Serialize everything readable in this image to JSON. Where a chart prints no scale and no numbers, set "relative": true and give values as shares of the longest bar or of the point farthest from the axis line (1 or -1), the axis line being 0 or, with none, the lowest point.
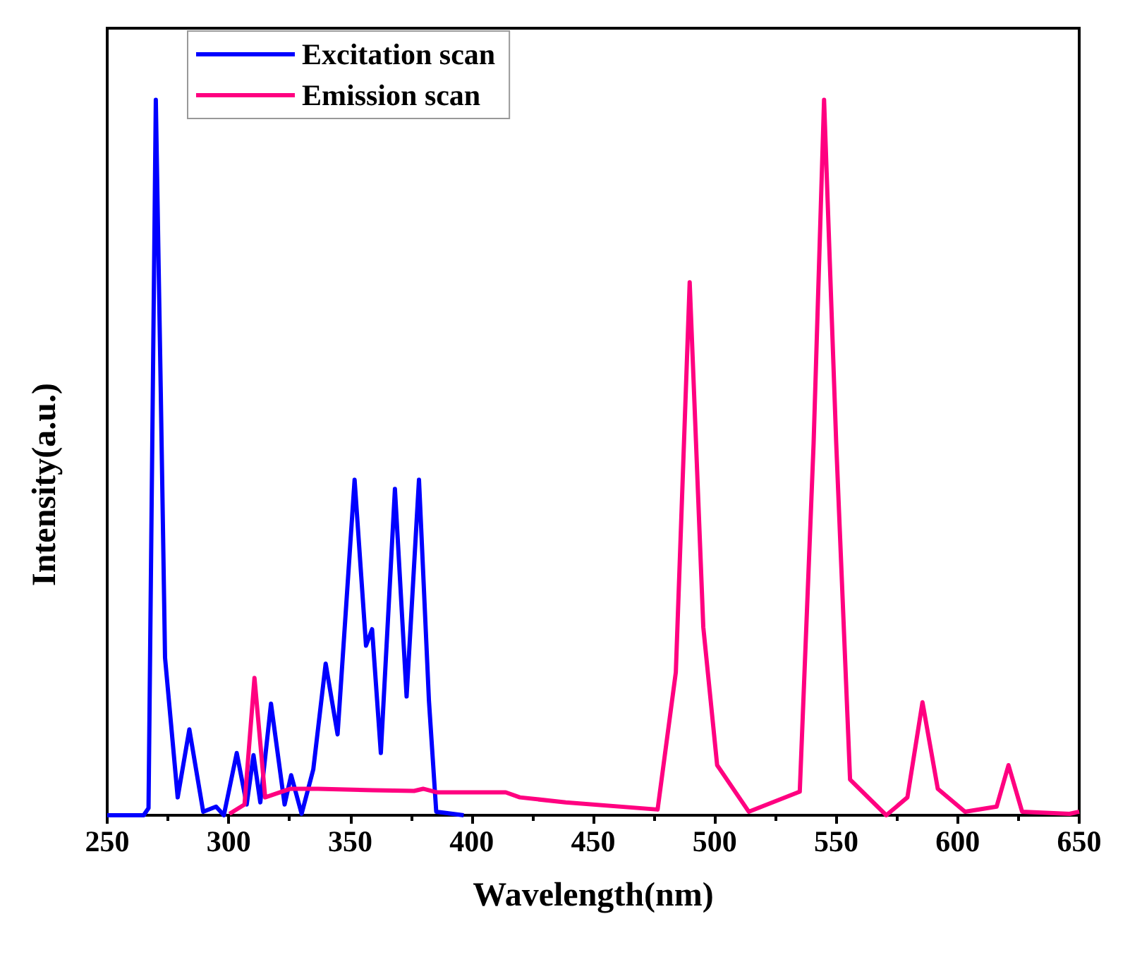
{
  "chart_data": {
    "type": "line",
    "xlabel": "Wavelength(nm)",
    "ylabel": "Intensity(a.u.)",
    "relative": true,
    "xlim": [
      250,
      650
    ],
    "xticks": [
      250,
      300,
      350,
      400,
      450,
      500,
      550,
      600,
      650
    ],
    "tick_labels": "x",
    "legend": "top left",
    "marker": "none",
    "line_style": "solid",
    "grid": false,
    "series": [
      {
        "name": "Excitation scan",
        "color": "#0000ff",
        "x": [
          250,
          265,
          267,
          270,
          272,
          273.8,
          279,
          283.8,
          289.5,
          294.8,
          298,
          303.3,
          307.4,
          310.2,
          313,
          317.4,
          323,
          325.7,
          330,
          334.8,
          339.9,
          344.8,
          351.8,
          356.5,
          359,
          362.6,
          368.4,
          373.2,
          378.3,
          382.4,
          385.4,
          396.7
        ],
        "values": [
          0,
          0,
          0.01,
          1.0,
          0.6,
          0.22,
          0.025,
          0.12,
          0.005,
          0.012,
          0,
          0.087,
          0.015,
          0.084,
          0.018,
          0.156,
          0.015,
          0.056,
          0.002,
          0.064,
          0.212,
          0.113,
          0.469,
          0.237,
          0.26,
          0.087,
          0.456,
          0.166,
          0.469,
          0.16,
          0.005,
          0
        ]
      },
      {
        "name": "Emission scan",
        "color": "#ff0080",
        "x": [
          300.3,
          306.5,
          310.6,
          315,
          325.4,
          336.7,
          359.3,
          376.3,
          380,
          385.8,
          414,
          419.8,
          438.7,
          476.5,
          484,
          489.7,
          495.3,
          501,
          514,
          535,
          540.7,
          545,
          550,
          555.7,
          570.6,
          579.3,
          585.5,
          591.8,
          603,
          616,
          620.9,
          626.5,
          646,
          650
        ],
        "values": [
          0.002,
          0.015,
          0.192,
          0.025,
          0.037,
          0.037,
          0.035,
          0.034,
          0.037,
          0.032,
          0.032,
          0.025,
          0.018,
          0.008,
          0.2,
          0.745,
          0.263,
          0.07,
          0.005,
          0.033,
          0.52,
          1.0,
          0.52,
          0.05,
          0,
          0.025,
          0.158,
          0.037,
          0.005,
          0.012,
          0.07,
          0.005,
          0.002,
          0.005
        ]
      }
    ]
  }
}
